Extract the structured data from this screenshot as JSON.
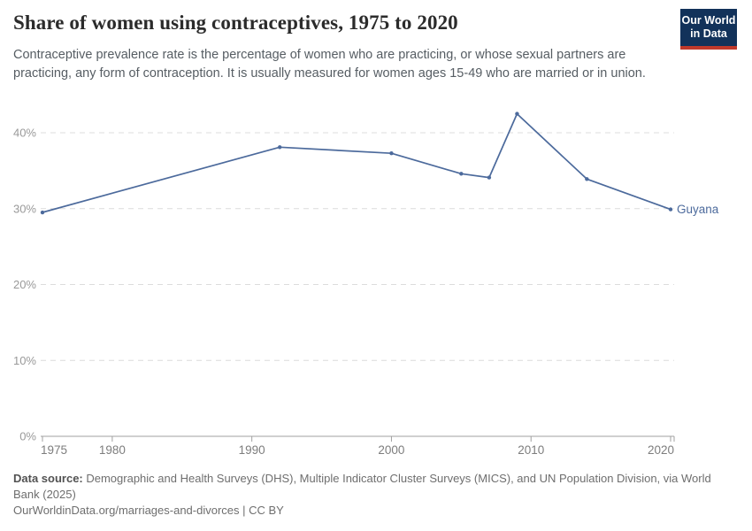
{
  "header": {
    "title": "Share of women using contraceptives, 1975 to 2020",
    "subtitle": "Contraceptive prevalence rate is the percentage of women who are practicing, or whose sexual partners are practicing, any form of contraception. It is usually measured for women ages 15-49 who are married or in union."
  },
  "logo": {
    "line1": "Our World",
    "line2": "in Data",
    "bg_color": "#12325a",
    "accent_color": "#c0392b"
  },
  "chart_data": {
    "type": "line",
    "title": "Share of women using contraceptives, 1975 to 2020",
    "xlabel": "",
    "ylabel": "",
    "xlim": [
      1975,
      2020
    ],
    "ylim": [
      0,
      44
    ],
    "grid": "horizontal-dashed",
    "legend_position": "end-of-line-label",
    "x_ticks": [
      1975,
      1980,
      1990,
      2000,
      2010,
      2020
    ],
    "y_ticks": [
      0,
      10,
      20,
      30,
      40
    ],
    "y_tick_suffix": "%",
    "series": [
      {
        "name": "Guyana",
        "color": "#4C6A9C",
        "points": [
          {
            "x": 1975,
            "y": 29.5
          },
          {
            "x": 1992,
            "y": 38.1
          },
          {
            "x": 2000,
            "y": 37.3
          },
          {
            "x": 2005,
            "y": 34.6
          },
          {
            "x": 2007,
            "y": 34.1
          },
          {
            "x": 2009,
            "y": 42.5
          },
          {
            "x": 2014,
            "y": 33.9
          },
          {
            "x": 2020,
            "y": 29.9
          }
        ]
      }
    ],
    "colors": {
      "gridline": "#dcdcdc",
      "axis": "#a0a0a0",
      "y_tick_label": "#999999",
      "x_tick_label": "#7d7d7d"
    }
  },
  "footer": {
    "source_label": "Data source:",
    "source_text": " Demographic and Health Surveys (DHS), Multiple Indicator Cluster Surveys (MICS), and UN Population Division, via World Bank (2025)",
    "link_text": "OurWorldinData.org/marriages-and-divorces | CC BY"
  }
}
